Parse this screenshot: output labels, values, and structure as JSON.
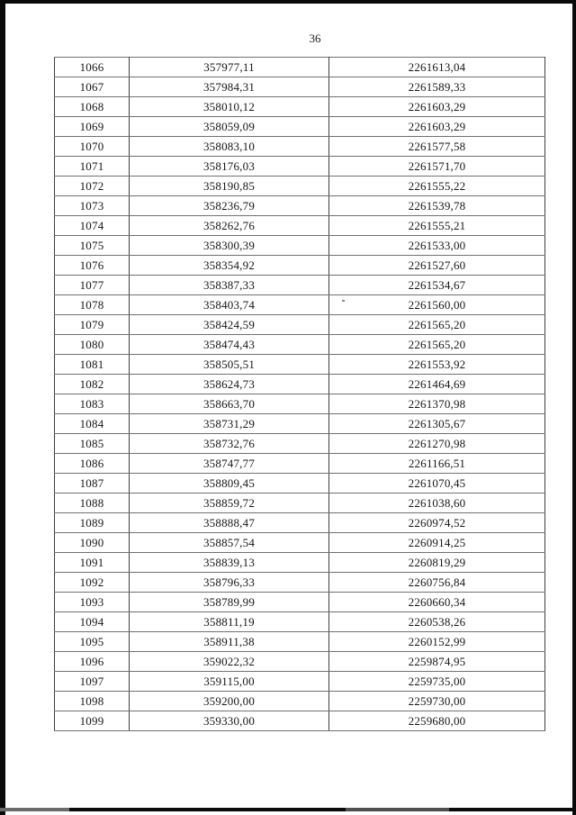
{
  "page": {
    "number": "36"
  },
  "table": {
    "rows": [
      [
        "1066",
        "357977,11",
        "2261613,04"
      ],
      [
        "1067",
        "357984,31",
        "2261589,33"
      ],
      [
        "1068",
        "358010,12",
        "2261603,29"
      ],
      [
        "1069",
        "358059,09",
        "2261603,29"
      ],
      [
        "1070",
        "358083,10",
        "2261577,58"
      ],
      [
        "1071",
        "358176,03",
        "2261571,70"
      ],
      [
        "1072",
        "358190,85",
        "2261555,22"
      ],
      [
        "1073",
        "358236,79",
        "2261539,78"
      ],
      [
        "1074",
        "358262,76",
        "2261555,21"
      ],
      [
        "1075",
        "358300,39",
        "2261533,00"
      ],
      [
        "1076",
        "358354,92",
        "2261527,60"
      ],
      [
        "1077",
        "358387,33",
        "2261534,67"
      ],
      [
        "1078",
        "358403,74",
        "2261560,00"
      ],
      [
        "1079",
        "358424,59",
        "2261565,20"
      ],
      [
        "1080",
        "358474,43",
        "2261565,20"
      ],
      [
        "1081",
        "358505,51",
        "2261553,92"
      ],
      [
        "1082",
        "358624,73",
        "2261464,69"
      ],
      [
        "1083",
        "358663,70",
        "2261370,98"
      ],
      [
        "1084",
        "358731,29",
        "2261305,67"
      ],
      [
        "1085",
        "358732,76",
        "2261270,98"
      ],
      [
        "1086",
        "358747,77",
        "2261166,51"
      ],
      [
        "1087",
        "358809,45",
        "2261070,45"
      ],
      [
        "1088",
        "358859,72",
        "2261038,60"
      ],
      [
        "1089",
        "358888,47",
        "2260974,52"
      ],
      [
        "1090",
        "358857,54",
        "2260914,25"
      ],
      [
        "1091",
        "358839,13",
        "2260819,29"
      ],
      [
        "1092",
        "358796,33",
        "2260756,84"
      ],
      [
        "1093",
        "358789,99",
        "2260660,34"
      ],
      [
        "1094",
        "358811,19",
        "2260538,26"
      ],
      [
        "1095",
        "358911,38",
        "2260152,99"
      ],
      [
        "1096",
        "359022,32",
        "2259874,95"
      ],
      [
        "1097",
        "359115,00",
        "2259735,00"
      ],
      [
        "1098",
        "359200,00",
        "2259730,00"
      ],
      [
        "1099",
        "359330,00",
        "2259680,00"
      ]
    ]
  }
}
